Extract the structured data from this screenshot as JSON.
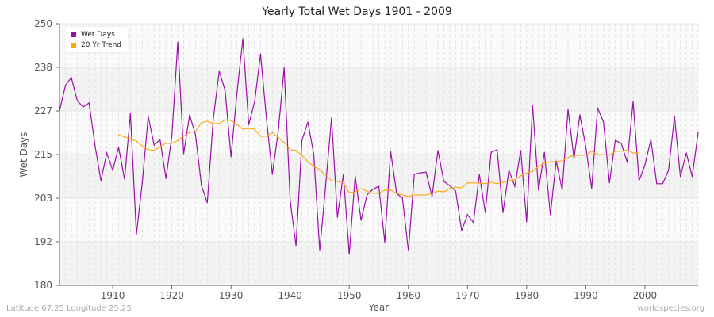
{
  "chart_data": {
    "type": "line",
    "title": "Yearly Total Wet Days 1901 - 2009",
    "xlabel": "Year",
    "ylabel": "Wet Days",
    "ylim": [
      180,
      250
    ],
    "yticks": [
      180,
      192,
      203,
      215,
      227,
      238,
      250
    ],
    "xticks": [
      1910,
      1920,
      1930,
      1940,
      1950,
      1960,
      1970,
      1980,
      1990,
      2000
    ],
    "xlim": [
      1901,
      2009
    ],
    "grid": true,
    "legend_position": "top-left",
    "series": [
      {
        "name": "Wet Days",
        "color": "#9b0fa8",
        "x_start": 1901,
        "values": [
          226.7,
          233.5,
          235.6,
          229.4,
          227.7,
          228.8,
          217.5,
          208,
          215.4,
          210.8,
          216.9,
          208.4,
          226,
          193.6,
          207.6,
          225.2,
          217.5,
          219,
          208.6,
          219.9,
          245.1,
          215.2,
          225.6,
          220.3,
          206.7,
          202.1,
          224.5,
          237.3,
          232.2,
          214.4,
          231.3,
          246,
          223,
          229.2,
          241.9,
          224.5,
          209.7,
          221.4,
          238.3,
          202.7,
          190.6,
          218.8,
          223.7,
          215,
          189.3,
          206.5,
          224.8,
          198.2,
          209.7,
          188.3,
          209.3,
          197.4,
          204.2,
          205.7,
          206.5,
          191.5,
          215.9,
          204.6,
          203.3,
          189.3,
          209.7,
          210.1,
          210.3,
          203.8,
          216.1,
          207.8,
          206.7,
          205.2,
          194.6,
          198.9,
          196.8,
          209.7,
          199.5,
          215.6,
          216.3,
          199.5,
          210.8,
          206.5,
          216.1,
          197,
          228.2,
          205.5,
          215.6,
          198.9,
          213.3,
          205.5,
          227.1,
          213.9,
          225.6,
          217.1,
          205.9,
          227.5,
          223.7,
          207.4,
          218.8,
          218,
          212.9,
          229.2,
          208,
          212.2,
          219,
          207.2,
          207.2,
          210.8,
          225.2,
          209.1,
          215.4,
          209.1,
          220.9
        ]
      },
      {
        "name": "20 Yr Trend",
        "color": "#ffa500",
        "x_start": 1911,
        "values": [
          220.3,
          219.7,
          219.2,
          218.6,
          217.3,
          216.3,
          216.1,
          217.1,
          218,
          218,
          218.8,
          219.9,
          220.9,
          221.2,
          223.5,
          223.9,
          223.3,
          223.3,
          224.3,
          224.1,
          223.1,
          221.8,
          222,
          221.8,
          219.9,
          219.9,
          220.9,
          219.5,
          218.2,
          216.3,
          216.1,
          214.8,
          213.1,
          211.8,
          211,
          209.5,
          208,
          207.8,
          207.4,
          204.8,
          205,
          205.9,
          205.2,
          204.6,
          204.6,
          205.5,
          205.5,
          204.6,
          204.2,
          203.8,
          204.2,
          204.2,
          204.2,
          204.6,
          205.2,
          205,
          205.9,
          206.3,
          206.1,
          207.4,
          207.4,
          207.4,
          207.2,
          207.6,
          207.2,
          207.6,
          208,
          208.2,
          209.3,
          210.1,
          210.5,
          211.8,
          212.7,
          213.1,
          213.1,
          213.3,
          214.2,
          214.8,
          214.8,
          214.8,
          215.9,
          215,
          215,
          214.8,
          215.9,
          215.9,
          216.3,
          215.4,
          215.6
        ]
      }
    ]
  },
  "footer": {
    "left": "Latitude 67.25 Longitude 25.25",
    "right": "worldspecies.org"
  }
}
